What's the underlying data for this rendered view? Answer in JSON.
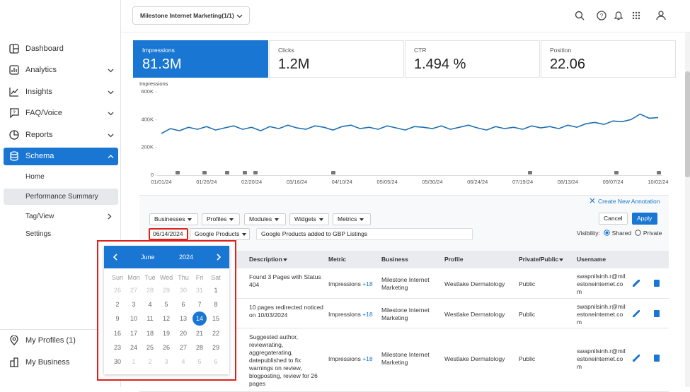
{
  "topbar": {
    "account": "Milestone Internet Marketing(1/1)"
  },
  "sidebar": {
    "items": [
      "Dashboard",
      "Analytics",
      "Insights",
      "FAQ/Voice",
      "Reports",
      "Schema"
    ],
    "subitems": [
      "Home",
      "Performance Summary",
      "Tag/View",
      "Settings"
    ],
    "bottom": [
      "My Profiles (1)",
      "My Business"
    ]
  },
  "metrics": [
    {
      "label": "Impressions",
      "value": "81.3M"
    },
    {
      "label": "Clicks",
      "value": "1.2M"
    },
    {
      "label": "CTR",
      "value": "1.494 %"
    },
    {
      "label": "Position",
      "value": "22.06"
    }
  ],
  "chart_data": {
    "type": "line",
    "ylabel": "Impressions",
    "color": "#1f6fb2",
    "grid": false,
    "categories": [
      "01/01/24",
      null,
      null,
      null,
      null,
      "01/26/24",
      null,
      null,
      null,
      null,
      "02/20/24",
      null,
      null,
      null,
      null,
      "03/16/24",
      null,
      null,
      null,
      null,
      "04/10/24",
      null,
      null,
      null,
      null,
      "05/05/24",
      null,
      null,
      null,
      null,
      "05/30/24",
      null,
      null,
      null,
      null,
      "06/24/24",
      null,
      null,
      null,
      null,
      "07/19/24",
      null,
      null,
      null,
      null,
      "08/13/24",
      null,
      null,
      null,
      null,
      "09/07/24",
      null,
      null,
      null,
      null,
      "10/02/24"
    ],
    "values": [
      300000,
      335000,
      320000,
      345000,
      330000,
      350000,
      325000,
      340000,
      355000,
      330000,
      345000,
      320000,
      350000,
      335000,
      360000,
      340000,
      330000,
      355000,
      345000,
      325000,
      350000,
      360000,
      335000,
      345000,
      330000,
      355000,
      340000,
      325000,
      350000,
      345000,
      335000,
      355000,
      330000,
      345000,
      360000,
      340000,
      325000,
      350000,
      335000,
      345000,
      330000,
      355000,
      340000,
      350000,
      335000,
      360000,
      345000,
      370000,
      380000,
      365000,
      390000,
      385000,
      400000,
      440000,
      410000,
      415000
    ],
    "ylim": [
      0,
      600000
    ],
    "yticks": [
      0,
      {
        "value": 200000,
        "label": "200K"
      },
      {
        "value": 400000,
        "label": "400K"
      },
      {
        "value": 600000,
        "label": "600K"
      }
    ]
  },
  "annotation": {
    "create": "Create New Annotation",
    "filters": [
      "Businesses",
      "Profiles",
      "Modules",
      "Widgets",
      "Metrics"
    ],
    "date": "06/14/2024",
    "product": "Google Products",
    "text": "Google Products added to GBP Listings",
    "cancel": "Cancel",
    "apply": "Apply",
    "visibility": "Visibility:",
    "shared": "Shared",
    "private": "Private"
  },
  "table": {
    "headers": [
      "Description",
      "Metric",
      "Business",
      "Profile",
      "Private/Public",
      "Username"
    ],
    "rows": [
      {
        "description": "Found 3 Pages with Status 404",
        "metric": "Impressions",
        "change": "+18",
        "business": "Milestone Internet Marketing",
        "profile": "Westlake Dermatology",
        "visibility": "Public",
        "username": "swapnilsinh.r@milestoneinternet.com"
      },
      {
        "description": "10 pages redirected noticed on 10/03/2024",
        "metric": "Impressions",
        "change": "+18",
        "business": "Milestone Internet Marketing",
        "profile": "Westlake Dermatology",
        "visibility": "Public",
        "username": "swapnilsinh.r@milestoneinternet.com"
      },
      {
        "description": "Suggested author, reviewrating, aggregaterating, datepublished to fix warnings on review, blogposting, review for 26 pages",
        "metric": "Impressions",
        "change": "+18",
        "business": "Milestone Internet Marketing",
        "profile": "Westlake Dermatology",
        "visibility": "Public",
        "username": "swapnilsinh.r@milestoneinternet.com"
      }
    ]
  },
  "calendar": {
    "month": "June",
    "year": "2024",
    "weekdays": [
      "Sun",
      "Mon",
      "Tue",
      "Wed",
      "Thu",
      "Fri",
      "Sat"
    ],
    "prev_days": [
      26,
      27,
      28,
      29,
      30,
      31
    ],
    "days": [
      1,
      2,
      3,
      4,
      5,
      6,
      7,
      8,
      9,
      10,
      11,
      12,
      13,
      14,
      15,
      16,
      17,
      18,
      19,
      20,
      21,
      22,
      23,
      24,
      25,
      26,
      27,
      28,
      29,
      30
    ],
    "next_days": [
      1,
      2,
      3,
      4,
      5,
      6
    ],
    "selected": 14
  }
}
